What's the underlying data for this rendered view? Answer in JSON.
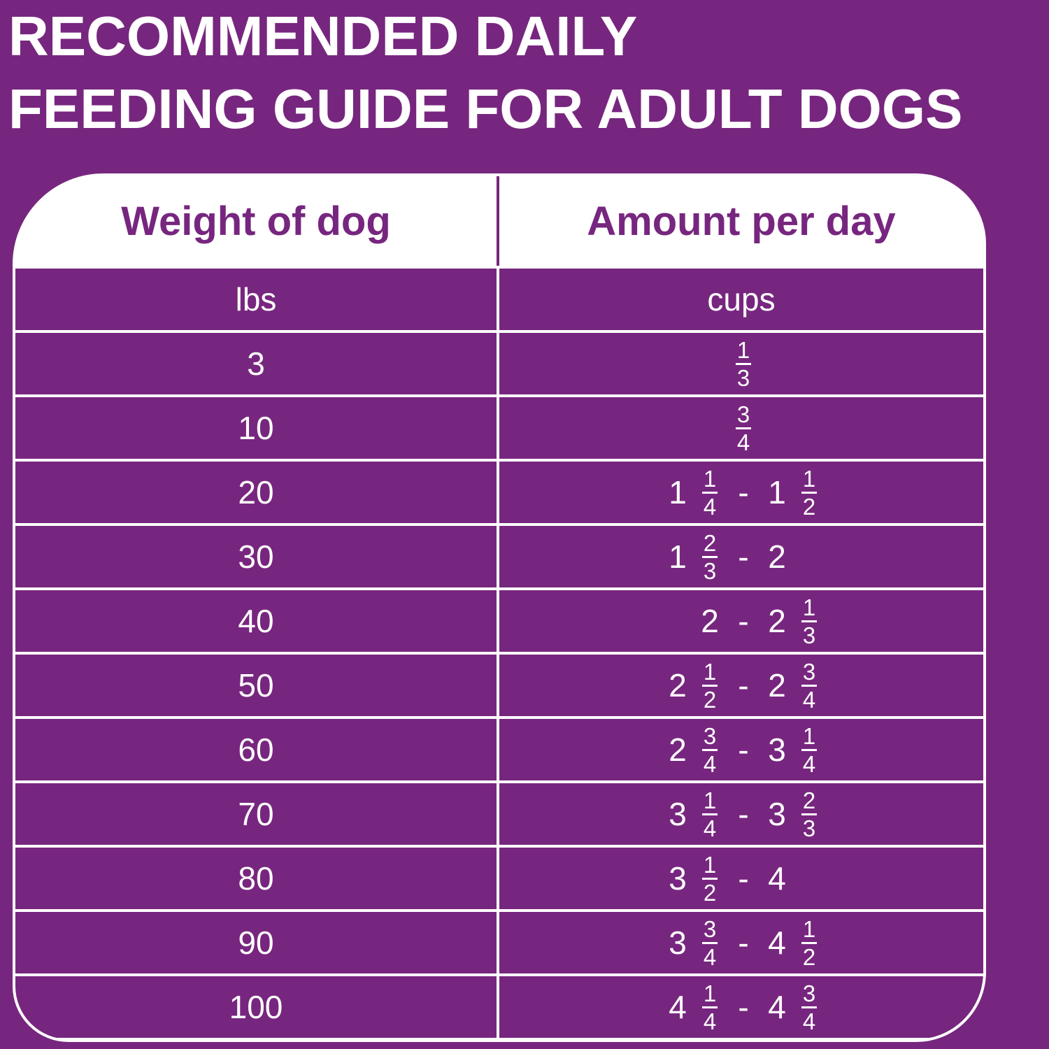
{
  "title": [
    "RECOMMENDED DAILY",
    "FEEDING GUIDE FOR ADULT DOGS"
  ],
  "headers": {
    "weight": "Weight of dog",
    "amount": "Amount per day"
  },
  "units": {
    "weight": "lbs",
    "amount": "cups"
  },
  "colors": {
    "background": "#77267f",
    "text": "#ffffff"
  },
  "rows": [
    {
      "lbs": "3",
      "cups": [
        null,
        null,
        {
          "num": "1",
          "den": "3"
        },
        null,
        null
      ]
    },
    {
      "lbs": "10",
      "cups": [
        null,
        null,
        {
          "num": "3",
          "den": "4"
        },
        null,
        null
      ]
    },
    {
      "lbs": "20",
      "cups": [
        {
          "whole": "1"
        },
        {
          "num": "1",
          "den": "4"
        },
        {
          "whole": "-"
        },
        {
          "whole": "1"
        },
        {
          "num": "1",
          "den": "2"
        }
      ]
    },
    {
      "lbs": "30",
      "cups": [
        {
          "whole": "1"
        },
        {
          "num": "2",
          "den": "3"
        },
        {
          "whole": "-"
        },
        {
          "whole": "2"
        },
        null
      ]
    },
    {
      "lbs": "40",
      "cups": [
        null,
        {
          "whole": "2"
        },
        {
          "whole": "-"
        },
        {
          "whole": "2"
        },
        {
          "num": "1",
          "den": "3"
        }
      ]
    },
    {
      "lbs": "50",
      "cups": [
        {
          "whole": "2"
        },
        {
          "num": "1",
          "den": "2"
        },
        {
          "whole": "-"
        },
        {
          "whole": "2"
        },
        {
          "num": "3",
          "den": "4"
        }
      ]
    },
    {
      "lbs": "60",
      "cups": [
        {
          "whole": "2"
        },
        {
          "num": "3",
          "den": "4"
        },
        {
          "whole": "-"
        },
        {
          "whole": "3"
        },
        {
          "num": "1",
          "den": "4"
        }
      ]
    },
    {
      "lbs": "70",
      "cups": [
        {
          "whole": "3"
        },
        {
          "num": "1",
          "den": "4"
        },
        {
          "whole": "-"
        },
        {
          "whole": "3"
        },
        {
          "num": "2",
          "den": "3"
        }
      ]
    },
    {
      "lbs": "80",
      "cups": [
        {
          "whole": "3"
        },
        {
          "num": "1",
          "den": "2"
        },
        {
          "whole": "-"
        },
        {
          "whole": "4"
        },
        null
      ]
    },
    {
      "lbs": "90",
      "cups": [
        {
          "whole": "3"
        },
        {
          "num": "3",
          "den": "4"
        },
        {
          "whole": "-"
        },
        {
          "whole": "4"
        },
        {
          "num": "1",
          "den": "2"
        }
      ]
    },
    {
      "lbs": "100",
      "cups": [
        {
          "whole": "4"
        },
        {
          "num": "1",
          "den": "4"
        },
        {
          "whole": "-"
        },
        {
          "whole": "4"
        },
        {
          "num": "3",
          "den": "4"
        }
      ]
    }
  ]
}
